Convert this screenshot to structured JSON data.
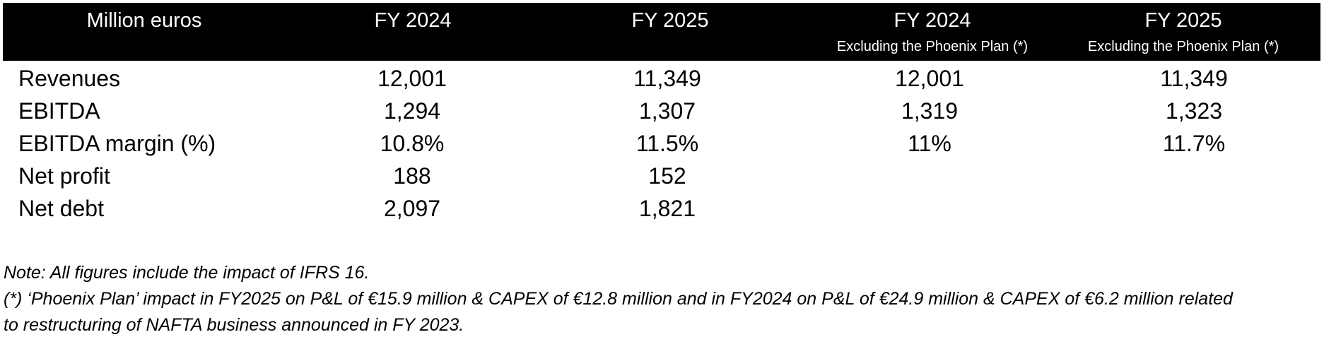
{
  "table": {
    "headers": [
      {
        "label": "Million euros",
        "sub": ""
      },
      {
        "label": "FY 2024",
        "sub": ""
      },
      {
        "label": "FY 2025",
        "sub": ""
      },
      {
        "label": "FY 2024",
        "sub": "Excluding the Phoenix Plan (*)"
      },
      {
        "label": "FY 2025",
        "sub": "Excluding the Phoenix Plan (*)"
      }
    ],
    "rows": [
      {
        "label": "Revenues",
        "values": [
          "12,001",
          "11,349",
          "12,001",
          "11,349"
        ]
      },
      {
        "label": "EBITDA",
        "values": [
          "1,294",
          "1,307",
          "1,319",
          "1,323"
        ]
      },
      {
        "label": "EBITDA margin (%)",
        "values": [
          "10.8%",
          "11.5%",
          "11%",
          "11.7%"
        ]
      },
      {
        "label": "Net profit",
        "values": [
          "188",
          "152",
          "",
          ""
        ]
      },
      {
        "label": "Net debt",
        "values": [
          "2,097",
          "1,821",
          "",
          ""
        ]
      }
    ]
  },
  "notes": [
    "Note: All figures include the impact of IFRS 16.",
    "(*) ‘Phoenix Plan’ impact in FY2025 on P&L of €15.9 million & CAPEX of €12.8 million and in FY2024 on P&L of €24.9 million & CAPEX of €6.2 million related",
    "to restructuring of NAFTA business announced in FY 2023."
  ]
}
